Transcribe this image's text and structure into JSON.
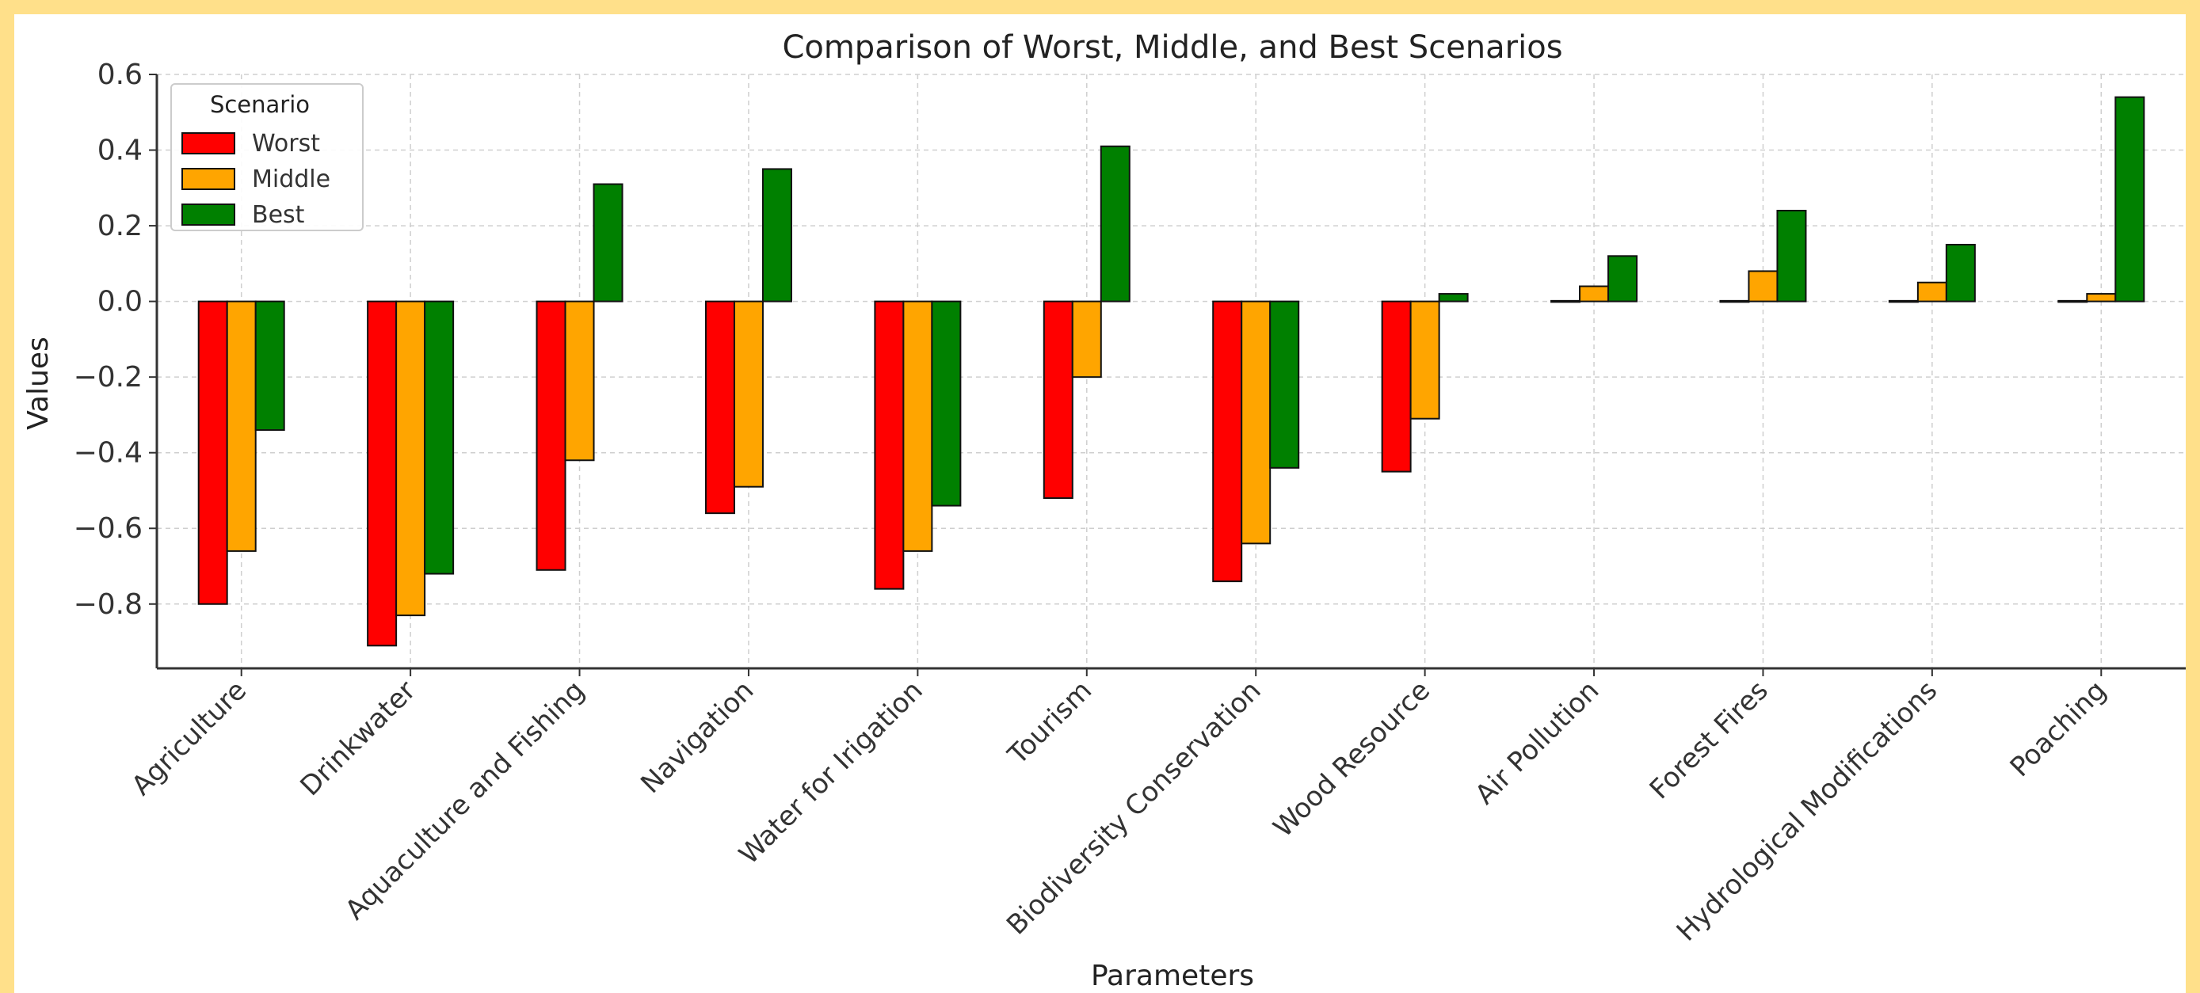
{
  "chart_data": {
    "type": "bar",
    "title": "Comparison of Worst, Middle, and Best Scenarios",
    "xlabel": "Parameters",
    "ylabel": "Values",
    "ylim": [
      -0.97,
      0.6
    ],
    "yticks": [
      0.6,
      0.4,
      0.2,
      0.0,
      -0.2,
      -0.4,
      -0.6,
      -0.8
    ],
    "ytick_labels": [
      "0.6",
      "0.4",
      "0.2",
      "0.0",
      "−0.2",
      "−0.4",
      "−0.6",
      "−0.8"
    ],
    "grid": true,
    "legend": {
      "title": "Scenario",
      "position": "top-left"
    },
    "categories": [
      "Agriculture",
      "Drinkwater",
      "Aquaculture and Fishing",
      "Navigation",
      "Water for Irigation",
      "Tourism",
      "Biodiversity Conservation",
      "Wood Resource",
      "Air Pollution",
      "Forest Fires",
      "Hydrological Modifications",
      "Poaching"
    ],
    "series": [
      {
        "name": "Worst",
        "color": "#ff0000",
        "values": [
          -0.8,
          -0.91,
          -0.71,
          -0.56,
          -0.76,
          -0.52,
          -0.74,
          -0.45,
          0.0,
          0.0,
          0.0,
          0.0
        ]
      },
      {
        "name": "Middle",
        "color": "#ffa500",
        "values": [
          -0.66,
          -0.83,
          -0.42,
          -0.49,
          -0.66,
          -0.2,
          -0.64,
          -0.31,
          0.04,
          0.08,
          0.05,
          0.02
        ]
      },
      {
        "name": "Best",
        "color": "#008000",
        "values": [
          -0.34,
          -0.72,
          0.31,
          0.35,
          -0.54,
          0.41,
          -0.44,
          0.02,
          0.12,
          0.24,
          0.15,
          0.54
        ]
      }
    ]
  }
}
